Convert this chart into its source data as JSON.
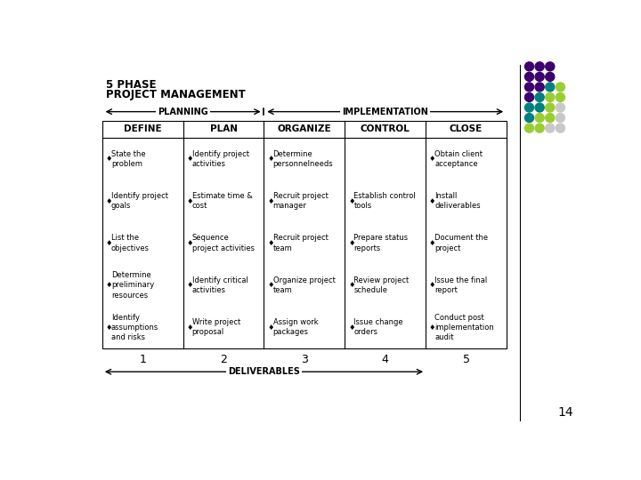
{
  "title_line1": "5 PHASE",
  "title_line2": "PROJECT MANAGEMENT",
  "planning_label": "PLANNING",
  "implementation_label": "IMPLEMENTATION",
  "deliverables_label": "DELIVERABLES",
  "page_number": "14",
  "columns": [
    {
      "header": "DEFINE",
      "number": "1",
      "items": [
        "State the\nproblem",
        "Identify project\ngoals",
        "List the\nobjectives",
        "Determine\npreliminary\nresources",
        "Identify\nassumptions\nand risks"
      ]
    },
    {
      "header": "PLAN",
      "number": "2",
      "items": [
        "Identify project\nactivities",
        "Estimate time &\ncost",
        "Sequence\nproject activities",
        "Identify critical\nactivities",
        "Write project\nproposal"
      ]
    },
    {
      "header": "ORGANIZE",
      "number": "3",
      "items": [
        "Determine\npersonnelneeds",
        "Recruit project\nmanager",
        "Recruit project\nteam",
        "Organize project\nteam",
        "Assign work\npackages"
      ]
    },
    {
      "header": "CONTROL",
      "number": "4",
      "items": [
        "",
        "Establish control\ntools",
        "Prepare status\nreports",
        "Review project\nschedule",
        "Issue change\norders"
      ]
    },
    {
      "header": "CLOSE",
      "number": "5",
      "items": [
        "Obtain client\nacceptance",
        "Install\ndeliverables",
        "Document the\nproject",
        "Issue the final\nreport",
        "Conduct post\nimplementation\naudit"
      ]
    }
  ],
  "dot_grid": [
    [
      "#3d006e",
      "#3d006e",
      "#3d006e",
      ""
    ],
    [
      "#3d006e",
      "#3d006e",
      "#3d006e",
      ""
    ],
    [
      "#3d006e",
      "#3d006e",
      "#008080",
      "#9acd32"
    ],
    [
      "#3d006e",
      "#008080",
      "#9acd32",
      "#9acd32"
    ],
    [
      "#008080",
      "#008080",
      "#9acd32",
      "#c8c8c8"
    ],
    [
      "#008080",
      "#9acd32",
      "#9acd32",
      "#c8c8c8"
    ],
    [
      "#9acd32",
      "#9acd32",
      "#c8c8c8",
      "#c8c8c8"
    ]
  ],
  "bg_color": "#ffffff",
  "text_color": "#000000"
}
